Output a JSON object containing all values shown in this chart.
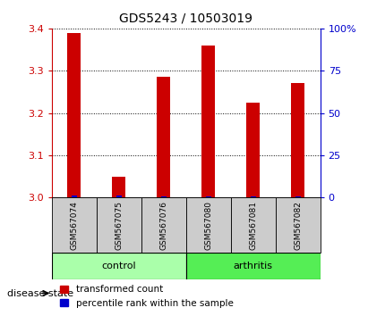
{
  "title": "GDS5243 / 10503019",
  "samples": [
    "GSM567074",
    "GSM567075",
    "GSM567076",
    "GSM567080",
    "GSM567081",
    "GSM567082"
  ],
  "red_values": [
    3.39,
    3.05,
    3.285,
    3.36,
    3.225,
    3.27
  ],
  "blue_values": [
    1.0,
    1.0,
    0.5,
    0.5,
    0.5,
    0.5
  ],
  "ylim_left": [
    3.0,
    3.4
  ],
  "ylim_right": [
    0,
    100
  ],
  "yticks_left": [
    3.0,
    3.1,
    3.2,
    3.3,
    3.4
  ],
  "yticks_right": [
    0,
    25,
    50,
    75,
    100
  ],
  "ytick_labels_right": [
    "0",
    "25",
    "50",
    "75",
    "100%"
  ],
  "left_color": "#cc0000",
  "right_color": "#0000cc",
  "red_bar_width": 0.3,
  "blue_bar_width": 0.12,
  "group_labels": [
    "control",
    "arthritis"
  ],
  "group_ranges": [
    [
      0,
      3
    ],
    [
      3,
      6
    ]
  ],
  "control_color": "#aaffaa",
  "arthritis_color": "#55ee55",
  "label_box_color": "#cccccc",
  "disease_label": "disease state",
  "legend_red": "transformed count",
  "legend_blue": "percentile rank within the sample"
}
